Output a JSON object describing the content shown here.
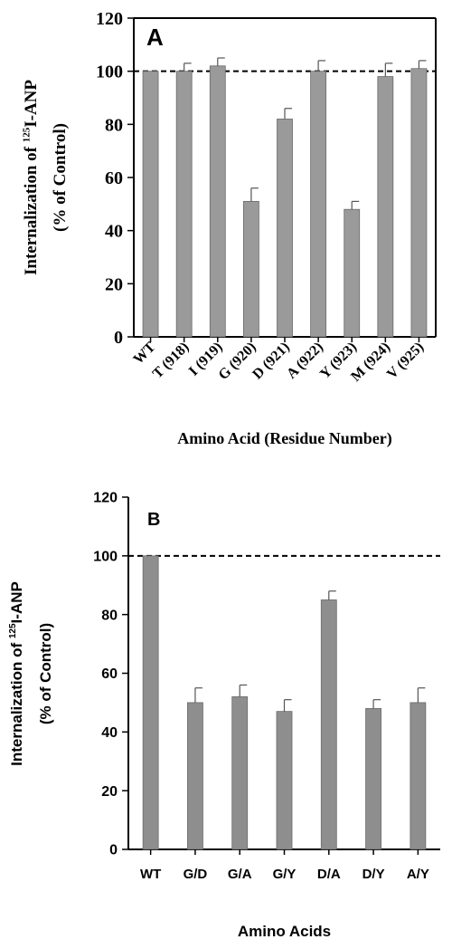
{
  "chart_data": [
    {
      "type": "bar",
      "panel_label": "A",
      "categories": [
        "WT",
        "T (918)",
        "I (919)",
        "G (920)",
        "D (921)",
        "A (922)",
        "Y (923)",
        "M (924)",
        "V (925)"
      ],
      "values": [
        100,
        100,
        102,
        51,
        82,
        100,
        48,
        98,
        101
      ],
      "errors": [
        0,
        3,
        3,
        5,
        4,
        4,
        3,
        5,
        3
      ],
      "ylabel_line1_prefix": "Internalization of ",
      "ylabel_line1_sup": "125",
      "ylabel_line1_suffix": "I-ANP",
      "ylabel_line2": "(% of Control)",
      "xlabel": "Amino Acid (Residue Number)",
      "ylim": [
        0,
        120
      ],
      "yticks": [
        "0",
        "20",
        "40",
        "60",
        "80",
        "100",
        "120"
      ],
      "reference_line": 100,
      "grid": false,
      "bar_color": "#9a9a9a"
    },
    {
      "type": "bar",
      "panel_label": "B",
      "categories": [
        "WT",
        "G/D",
        "G/A",
        "G/Y",
        "D/A",
        "D/Y",
        "A/Y"
      ],
      "values": [
        100,
        50,
        52,
        47,
        85,
        48,
        50
      ],
      "errors": [
        0,
        5,
        4,
        4,
        3,
        3,
        5
      ],
      "ylabel_line1_prefix": "Internalization of ",
      "ylabel_line1_sup": "125",
      "ylabel_line1_suffix": "I-ANP",
      "ylabel_line2": "(% of Control)",
      "xlabel": "Amino Acids",
      "ylim": [
        0,
        120
      ],
      "yticks": [
        "0",
        "20",
        "40",
        "60",
        "80",
        "100",
        "120"
      ],
      "reference_line": 100,
      "grid": false,
      "bar_color": "#8e8e8e"
    }
  ]
}
